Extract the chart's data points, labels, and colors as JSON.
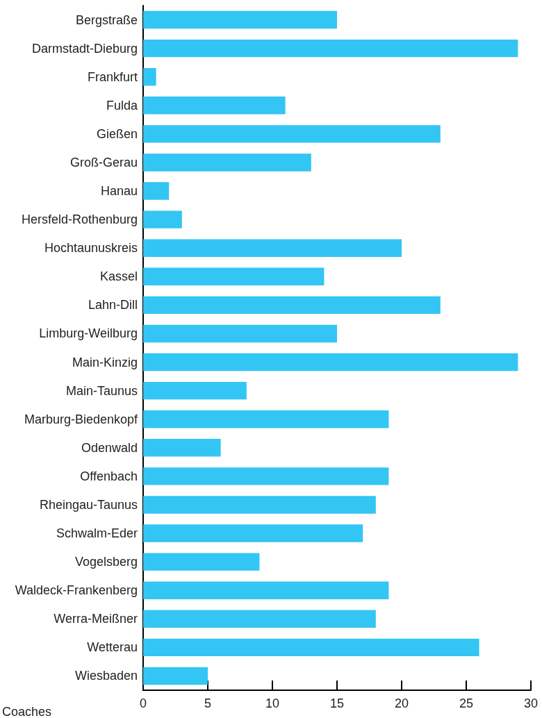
{
  "chart_data": {
    "type": "bar",
    "orientation": "horizontal",
    "xlabel": "Coaches",
    "categories": [
      "Bergstraße",
      "Darmstadt-Dieburg",
      "Frankfurt",
      "Fulda",
      "Gießen",
      "Groß-Gerau",
      "Hanau",
      "Hersfeld-Rothenburg",
      "Hochtaunuskreis",
      "Kassel",
      "Lahn-Dill",
      "Limburg-Weilburg",
      "Main-Kinzig",
      "Main-Taunus",
      "Marburg-Biedenkopf",
      "Odenwald",
      "Offenbach",
      "Rheingau-Taunus",
      "Schwalm-Eder",
      "Vogelsberg",
      "Waldeck-Frankenberg",
      "Werra-Meißner",
      "Wetterau",
      "Wiesbaden"
    ],
    "values": [
      15,
      29,
      1,
      11,
      23,
      13,
      2,
      3,
      20,
      14,
      23,
      15,
      29,
      8,
      19,
      6,
      19,
      18,
      17,
      9,
      19,
      18,
      26,
      5
    ],
    "color": "#33c5f3",
    "xlim": [
      0,
      30
    ],
    "xticks": [
      0,
      5,
      10,
      15,
      20,
      25,
      30
    ]
  }
}
